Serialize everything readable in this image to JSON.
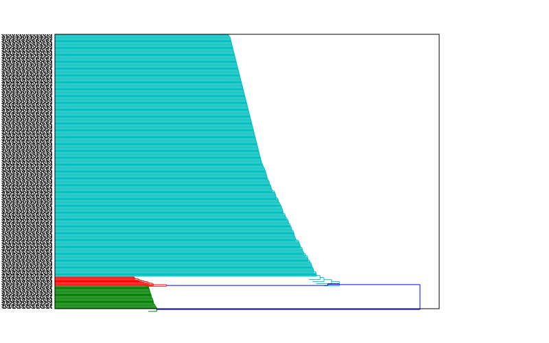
{
  "chart_data": {
    "type": "dendrogram",
    "orientation": "left-to-right",
    "title": "",
    "xlabel": "",
    "ylabel": "",
    "grid": false,
    "xlim": [
      0,
      1
    ],
    "leaf_count": 360,
    "leaf_labels_legible": false,
    "clusters": [
      {
        "color": "#00bfbf",
        "leaves": 318,
        "merge_height_range": [
          0.45,
          0.68
        ],
        "final_merges": [
          0.68,
          0.69,
          0.7,
          0.72,
          0.74
        ]
      },
      {
        "color": "#ff0000",
        "leaves": 12,
        "merge_height_range": [
          0.2,
          0.26
        ],
        "final_merges": [
          0.29
        ]
      },
      {
        "color": "#008000",
        "leaves": 30,
        "merge_height_range": [
          0.24,
          0.26
        ],
        "final_merges": [
          0.265
        ]
      }
    ],
    "root": {
      "color": "#0000ff",
      "links": [
        {
          "joins": [
            "cyan",
            "red"
          ],
          "height": 0.71
        },
        {
          "joins": [
            "cyan+red",
            "green"
          ],
          "height": 0.95
        }
      ]
    }
  }
}
